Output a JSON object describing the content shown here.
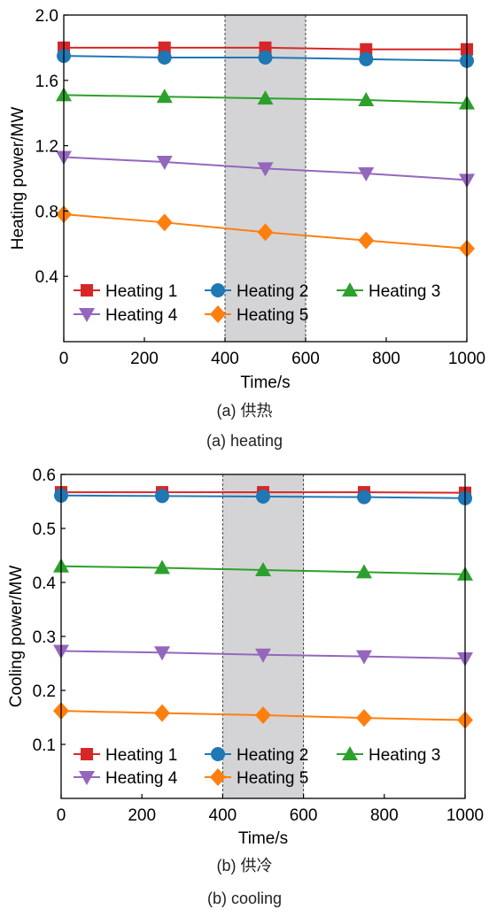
{
  "chart_data": [
    {
      "type": "line",
      "title": "",
      "xlabel": "Time/s",
      "ylabel": "Heating power/MW",
      "xlim": [
        0,
        1000
      ],
      "ylim": [
        0,
        2.0
      ],
      "xticks": [
        "0",
        "200",
        "400",
        "600",
        "800",
        "1000"
      ],
      "yticks": [
        "0.4",
        "0.8",
        "1.2",
        "1.6",
        "2.0"
      ],
      "shaded_region": [
        400,
        600
      ],
      "legend": "bottom, inside plot, 3 columns",
      "grid": false,
      "x": [
        0,
        250,
        500,
        750,
        1000
      ],
      "series": [
        {
          "name": "Heating 1",
          "color": "#d62728",
          "marker": "square",
          "values": [
            1.8,
            1.8,
            1.8,
            1.79,
            1.79
          ]
        },
        {
          "name": "Heating 2",
          "color": "#1f77b4",
          "marker": "circle",
          "values": [
            1.75,
            1.74,
            1.74,
            1.73,
            1.72
          ]
        },
        {
          "name": "Heating 3",
          "color": "#2ca02c",
          "marker": "triangle-up",
          "values": [
            1.51,
            1.5,
            1.49,
            1.48,
            1.46
          ]
        },
        {
          "name": "Heating 4",
          "color": "#9467bd",
          "marker": "triangle-down",
          "values": [
            1.13,
            1.1,
            1.06,
            1.03,
            0.99
          ]
        },
        {
          "name": "Heating 5",
          "color": "#ff7f0e",
          "marker": "diamond",
          "values": [
            0.78,
            0.73,
            0.67,
            0.62,
            0.57
          ]
        }
      ]
    },
    {
      "type": "line",
      "title": "",
      "xlabel": "Time/s",
      "ylabel": "Cooling power/MW",
      "xlim": [
        0,
        1000
      ],
      "ylim": [
        0,
        0.6
      ],
      "xticks": [
        "0",
        "200",
        "400",
        "600",
        "800",
        "1000"
      ],
      "yticks": [
        "0.1",
        "0.2",
        "0.3",
        "0.4",
        "0.5",
        "0.6"
      ],
      "shaded_region": [
        400,
        600
      ],
      "legend": "bottom, inside plot, 3 columns",
      "grid": false,
      "x": [
        0,
        250,
        500,
        750,
        1000
      ],
      "series": [
        {
          "name": "Heating 1",
          "color": "#d62728",
          "marker": "square",
          "values": [
            0.567,
            0.567,
            0.567,
            0.567,
            0.566
          ]
        },
        {
          "name": "Heating 2",
          "color": "#1f77b4",
          "marker": "circle",
          "values": [
            0.561,
            0.56,
            0.559,
            0.558,
            0.556
          ]
        },
        {
          "name": "Heating 3",
          "color": "#2ca02c",
          "marker": "triangle-up",
          "values": [
            0.43,
            0.427,
            0.423,
            0.419,
            0.415
          ]
        },
        {
          "name": "Heating 4",
          "color": "#9467bd",
          "marker": "triangle-down",
          "values": [
            0.273,
            0.27,
            0.266,
            0.263,
            0.259
          ]
        },
        {
          "name": "Heating 5",
          "color": "#ff7f0e",
          "marker": "diamond",
          "values": [
            0.162,
            0.158,
            0.154,
            0.149,
            0.145
          ]
        }
      ]
    }
  ],
  "captions": {
    "a_cn": "(a) 供热",
    "a_en": "(a) heating",
    "b_cn": "(b) 供冷",
    "b_en": "(b) cooling"
  }
}
